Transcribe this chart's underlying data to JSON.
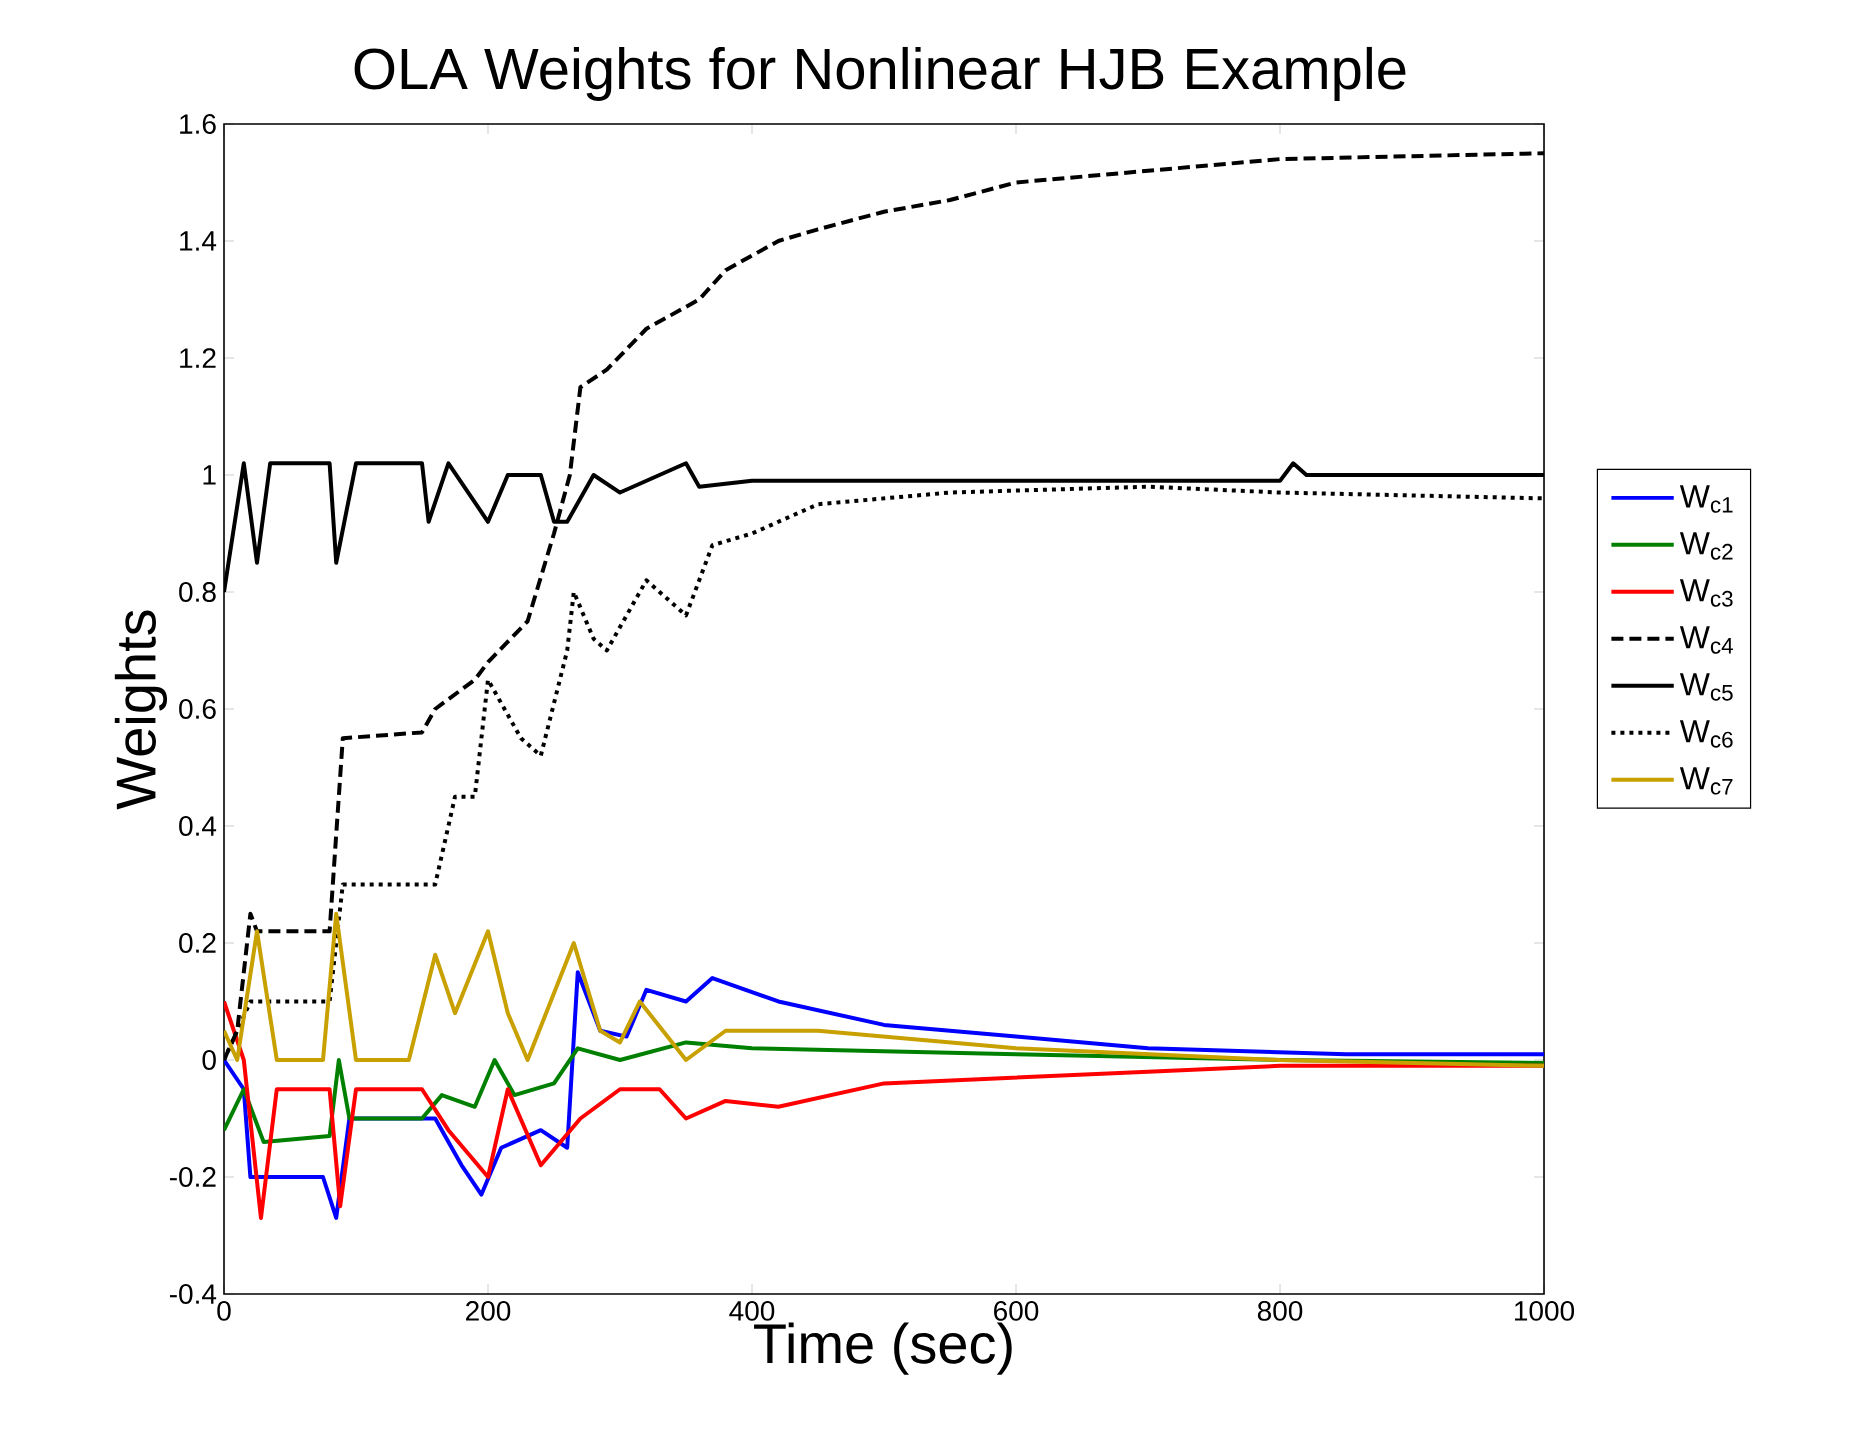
{
  "chart_data": {
    "type": "line",
    "title": "OLA Weights for Nonlinear HJB Example",
    "xlabel": "Time (sec)",
    "ylabel": "Weights",
    "xlim": [
      0,
      1000
    ],
    "ylim": [
      -0.4,
      1.6
    ],
    "xticks": [
      0,
      200,
      400,
      600,
      800,
      1000
    ],
    "yticks": [
      -0.4,
      -0.2,
      0,
      0.2,
      0.4,
      0.6,
      0.8,
      1,
      1.2,
      1.4,
      1.6
    ],
    "legend": "right",
    "series": [
      {
        "name": "W$_{c1}$",
        "color": "#0000ff",
        "line_style": "solid",
        "x": [
          0,
          15,
          20,
          75,
          85,
          95,
          160,
          180,
          195,
          210,
          240,
          260,
          268,
          285,
          305,
          320,
          350,
          370,
          420,
          500,
          600,
          700,
          850,
          1000
        ],
        "values": [
          0.0,
          -0.05,
          -0.2,
          -0.2,
          -0.27,
          -0.1,
          -0.1,
          -0.18,
          -0.23,
          -0.15,
          -0.12,
          -0.15,
          0.15,
          0.05,
          0.04,
          0.12,
          0.1,
          0.14,
          0.1,
          0.06,
          0.04,
          0.02,
          0.01,
          0.01
        ]
      },
      {
        "name": "W$_{c2}$",
        "color": "#008000",
        "line_style": "solid",
        "x": [
          0,
          15,
          30,
          80,
          87,
          95,
          150,
          165,
          190,
          205,
          220,
          250,
          268,
          300,
          350,
          400,
          600,
          800,
          1000
        ],
        "values": [
          -0.12,
          -0.05,
          -0.14,
          -0.13,
          0.0,
          -0.1,
          -0.1,
          -0.06,
          -0.08,
          0.0,
          -0.06,
          -0.04,
          0.02,
          0.0,
          0.03,
          0.02,
          0.01,
          0.0,
          -0.005
        ]
      },
      {
        "name": "W$_{c3}$",
        "color": "#ff0000",
        "line_style": "solid",
        "x": [
          0,
          15,
          28,
          40,
          80,
          88,
          100,
          150,
          170,
          200,
          215,
          240,
          270,
          300,
          330,
          350,
          380,
          420,
          500,
          700,
          800,
          1000
        ],
        "values": [
          0.1,
          0.0,
          -0.27,
          -0.05,
          -0.05,
          -0.25,
          -0.05,
          -0.05,
          -0.12,
          -0.2,
          -0.05,
          -0.18,
          -0.1,
          -0.05,
          -0.05,
          -0.1,
          -0.07,
          -0.08,
          -0.04,
          -0.02,
          -0.01,
          -0.01
        ]
      },
      {
        "name": "W$_{c4}$",
        "color": "#000000",
        "line_style": "dashed",
        "x": [
          0,
          10,
          20,
          25,
          80,
          90,
          150,
          160,
          190,
          200,
          230,
          250,
          262,
          270,
          290,
          320,
          360,
          380,
          420,
          450,
          500,
          550,
          600,
          700,
          800,
          1000
        ],
        "values": [
          0.0,
          0.05,
          0.25,
          0.22,
          0.22,
          0.55,
          0.56,
          0.6,
          0.65,
          0.68,
          0.75,
          0.9,
          1.0,
          1.15,
          1.18,
          1.25,
          1.3,
          1.35,
          1.4,
          1.42,
          1.45,
          1.47,
          1.5,
          1.52,
          1.54,
          1.55
        ]
      },
      {
        "name": "W$_{c5}$",
        "color": "#000000",
        "line_style": "solid",
        "x": [
          0,
          15,
          25,
          35,
          80,
          85,
          100,
          150,
          155,
          170,
          200,
          215,
          240,
          250,
          260,
          280,
          300,
          350,
          360,
          400,
          800,
          810,
          820,
          1000
        ],
        "values": [
          0.8,
          1.02,
          0.85,
          1.02,
          1.02,
          0.85,
          1.02,
          1.02,
          0.92,
          1.02,
          0.92,
          1.0,
          1.0,
          0.92,
          0.92,
          1.0,
          0.97,
          1.02,
          0.98,
          0.99,
          0.99,
          1.02,
          1.0,
          1.0
        ]
      },
      {
        "name": "W$_{c6}$",
        "color": "#000000",
        "line_style": "dotted",
        "x": [
          0,
          20,
          80,
          90,
          160,
          175,
          190,
          200,
          225,
          240,
          260,
          265,
          280,
          290,
          320,
          350,
          370,
          400,
          450,
          550,
          700,
          800,
          1000
        ],
        "values": [
          0.0,
          0.1,
          0.1,
          0.3,
          0.3,
          0.45,
          0.45,
          0.65,
          0.55,
          0.52,
          0.7,
          0.8,
          0.72,
          0.7,
          0.82,
          0.76,
          0.88,
          0.9,
          0.95,
          0.97,
          0.98,
          0.97,
          0.96
        ]
      },
      {
        "name": "W$_{c7}$",
        "color": "#c8a000",
        "line_style": "solid",
        "x": [
          0,
          10,
          25,
          40,
          75,
          85,
          100,
          140,
          160,
          175,
          200,
          215,
          230,
          265,
          285,
          300,
          315,
          350,
          380,
          450,
          500,
          600,
          800,
          1000
        ],
        "values": [
          0.05,
          0.0,
          0.22,
          0.0,
          0.0,
          0.25,
          0.0,
          0.0,
          0.18,
          0.08,
          0.22,
          0.08,
          0.0,
          0.2,
          0.05,
          0.03,
          0.1,
          0.0,
          0.05,
          0.05,
          0.04,
          0.02,
          0.0,
          -0.01
        ]
      }
    ]
  }
}
